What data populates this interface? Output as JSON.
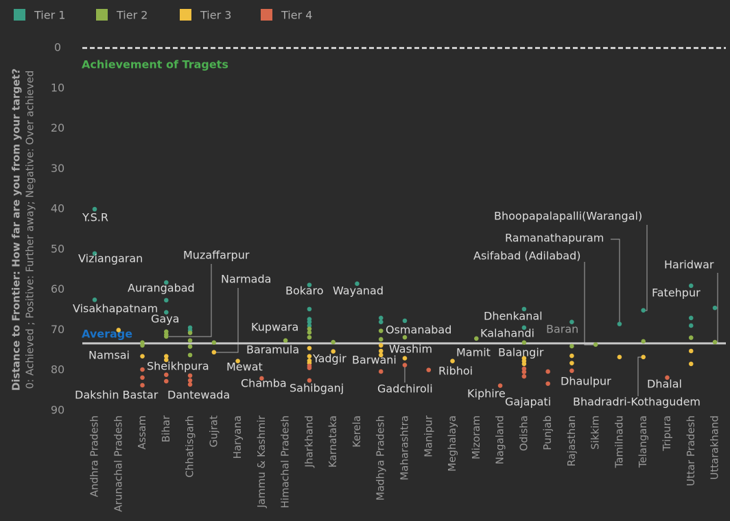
{
  "chart_data": {
    "type": "dot",
    "ylabel": "Distance to Frontier: How far are you from your target?",
    "ylabel2": "0: Achieved ; Positive: Further away; Negative: Over achieved",
    "target_label": "Achievement of Tragets",
    "target": 0,
    "average_label": "Average",
    "average": 73.3,
    "ylim": [
      0,
      90
    ],
    "yticks": [
      0,
      10,
      20,
      30,
      40,
      50,
      60,
      70,
      80,
      90
    ],
    "inverted_y": true,
    "legend": "top-left",
    "categories": [
      "Andhra Pradesh",
      "Arunachal Pradesh",
      "Assam",
      "Bihar",
      "Chhatisgarh",
      "Gujrat",
      "Haryana",
      "Jammu & Kashmir",
      "Himachal Pradesh",
      "Jharkhand",
      "Karnataka",
      "Kerela",
      "Madhya Pradesh",
      "Maharashtra",
      "Manipur",
      "Meghalaya",
      "Mizoram",
      "Nagaland",
      "Odisha",
      "Punjab",
      "Rajasthan",
      "Sikkim",
      "Tamilnadu",
      "Telangana",
      "Tripura",
      "Uttar Pradesh",
      "Uttarakhand"
    ],
    "series": [
      {
        "name": "Tier 1",
        "color": "#3a9e85",
        "x": [
          "Andhra Pradesh",
          "Andhra Pradesh",
          "Andhra Pradesh",
          "Bihar",
          "Bihar",
          "Bihar",
          "Chhatisgarh",
          "Chhatisgarh",
          "Jharkhand",
          "Jharkhand",
          "Jharkhand",
          "Jharkhand",
          "Jharkhand",
          "Kerela",
          "Madhya Pradesh",
          "Madhya Pradesh",
          "Maharashtra",
          "Odisha",
          "Odisha",
          "Rajasthan",
          "Tamilnadu",
          "Telangana",
          "Uttar Pradesh",
          "Uttar Pradesh",
          "Uttar Pradesh",
          "Uttarakhand"
        ],
        "values": [
          40,
          51,
          62.5,
          58.2,
          62.6,
          65.6,
          69.4,
          70.1,
          58.8,
          64.8,
          67.3,
          68,
          68.9,
          58.5,
          67,
          68,
          67.7,
          64.8,
          69.4,
          68,
          68.5,
          65.1,
          59,
          67,
          68.9,
          64.5
        ]
      },
      {
        "name": "Tier 2",
        "color": "#8fb04a",
        "x": [
          "Assam",
          "Assam",
          "Bihar",
          "Bihar",
          "Bihar",
          "Chhatisgarh",
          "Chhatisgarh",
          "Chhatisgarh",
          "Chhatisgarh",
          "Gujrat",
          "Himachal Pradesh",
          "Jharkhand",
          "Jharkhand",
          "Jharkhand",
          "Karnataka",
          "Madhya Pradesh",
          "Madhya Pradesh",
          "Maharashtra",
          "Mizoram",
          "Odisha",
          "Rajasthan",
          "Sikkim",
          "Telangana",
          "Uttar Pradesh",
          "Uttarakhand"
        ],
        "values": [
          73.1,
          73.8,
          70.4,
          71.1,
          71.6,
          70.7,
          72.6,
          74.1,
          76.2,
          73.1,
          72.6,
          69.7,
          70.6,
          71.8,
          73,
          70.2,
          72.3,
          71.8,
          72.1,
          73.1,
          74,
          73.6,
          72.8,
          71.9,
          73
        ]
      },
      {
        "name": "Tier 3",
        "color": "#f0c040",
        "x": [
          "Arunachal Pradesh",
          "Assam",
          "Bihar",
          "Bihar",
          "Gujrat",
          "Haryana",
          "Jharkhand",
          "Jharkhand",
          "Jharkhand",
          "Jharkhand",
          "Karnataka",
          "Madhya Pradesh",
          "Madhya Pradesh",
          "Madhya Pradesh",
          "Maharashtra",
          "Meghalaya",
          "Odisha",
          "Odisha",
          "Odisha",
          "Rajasthan",
          "Rajasthan",
          "Tamilnadu",
          "Telangana",
          "Uttar Pradesh",
          "Uttar Pradesh"
        ],
        "values": [
          70,
          76.5,
          76.5,
          77.4,
          75.5,
          77.7,
          74.5,
          76.5,
          77.6,
          78.2,
          75.3,
          73.8,
          75.2,
          76.2,
          77,
          77.7,
          77,
          77.7,
          78.4,
          76.4,
          78.2,
          76.7,
          76.7,
          75.2,
          78.4
        ]
      },
      {
        "name": "Tier 4",
        "color": "#d8684c",
        "x": [
          "Assam",
          "Assam",
          "Assam",
          "Bihar",
          "Bihar",
          "Chhatisgarh",
          "Chhatisgarh",
          "Chhatisgarh",
          "Jammu & Kashmir",
          "Jharkhand",
          "Jharkhand",
          "Jharkhand",
          "Madhya Pradesh",
          "Maharashtra",
          "Manipur",
          "Nagaland",
          "Odisha",
          "Odisha",
          "Odisha",
          "Punjab",
          "Punjab",
          "Rajasthan",
          "Tripura"
        ],
        "values": [
          79.8,
          81.8,
          83.7,
          81.1,
          82.7,
          81.3,
          82.5,
          83.5,
          82,
          78.9,
          79.4,
          82.5,
          80.3,
          78.7,
          79.9,
          83.8,
          79.6,
          80.4,
          81.5,
          80.3,
          83.3,
          80.1,
          81.8
        ]
      }
    ],
    "annotations": [
      "Y.S.R",
      "Viziangaran",
      "Visakhapatnam",
      "Aurangabad",
      "Gaya",
      "Muzaffarpur",
      "Narmada",
      "Namsai",
      "Sheikhpura",
      "Mewat",
      "Dakshin Bastar",
      "Dantewada",
      "Chamba",
      "Kupwara",
      "Baramula",
      "Bokaro",
      "Wayanad",
      "Yadgir",
      "Sahibganj",
      "Barwani",
      "Osmanabad",
      "Washim",
      "Gadchiroli",
      "Ribhoi",
      "Mamit",
      "Kiphire",
      "Dhenkanal",
      "Kalahandi",
      "Balangir",
      "Gajapati",
      "Baran",
      "Dhaulpur",
      "Bhoopapalapalli(Warangal)",
      "Ramanathapuram",
      "Asifabad (Adilabad)",
      "Bhadradri-Kothagudem",
      "Dhalal",
      "Haridwar",
      "Fatehpur"
    ]
  }
}
